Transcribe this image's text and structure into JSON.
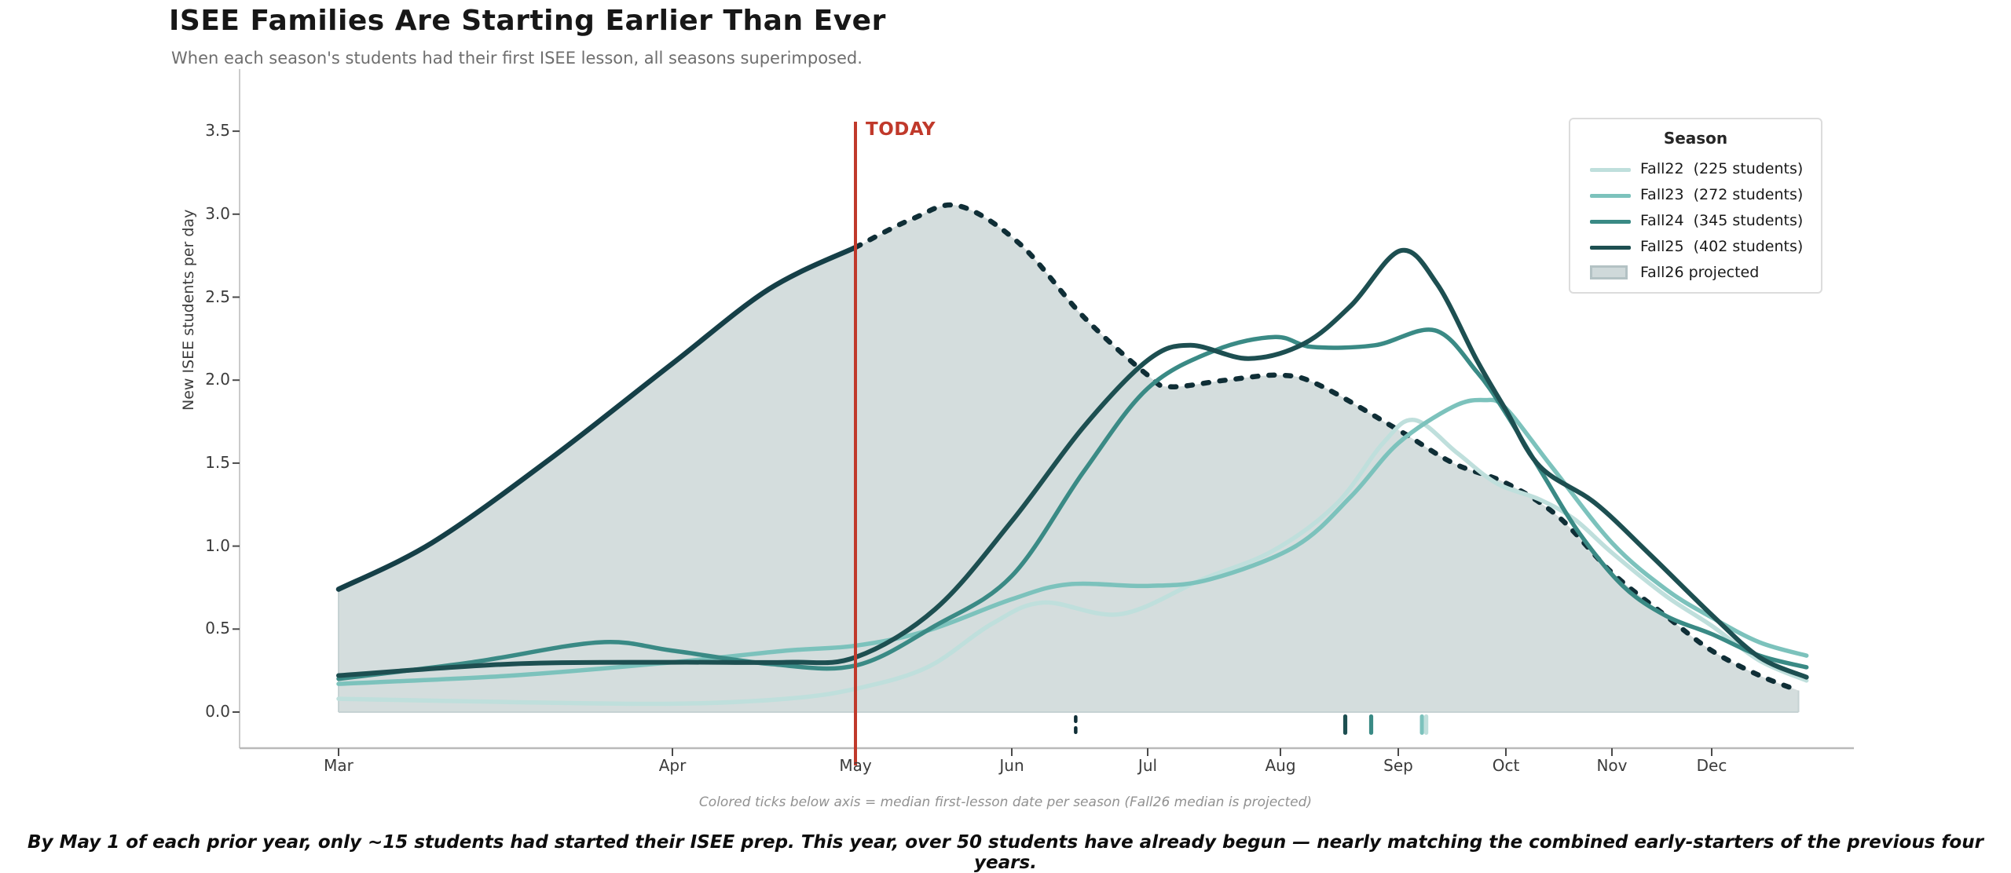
{
  "header": {
    "title": "ISEE Families Are Starting Earlier Than Ever",
    "subtitle": "When each season's students had their first ISEE lesson, all seasons superimposed."
  },
  "chart": {
    "today_label": "TODAY",
    "caption": "Colored ticks below axis = median first-lesson date per season  (Fall26 median is projected)",
    "y_axis": {
      "label": "New ISEE students per day",
      "ticks": [
        "0.0",
        "0.5",
        "1.0",
        "1.5",
        "2.0",
        "2.5",
        "3.0",
        "3.5"
      ]
    },
    "x_axis": {
      "months": [
        "Mar",
        "Apr",
        "May",
        "Jun",
        "Jul",
        "Aug",
        "Sep",
        "Oct",
        "Nov",
        "Dec"
      ]
    },
    "legend": {
      "title": "Season",
      "entries": [
        {
          "label": "Fall22  (225 students)",
          "type": "line",
          "color": "#bfdfdc"
        },
        {
          "label": "Fall23  (272 students)",
          "type": "line",
          "color": "#7cc2bc"
        },
        {
          "label": "Fall24  (345 students)",
          "type": "line",
          "color": "#3a8a85"
        },
        {
          "label": "Fall25  (402 students)",
          "type": "line",
          "color": "#1d4f51"
        },
        {
          "label": "Fall26 projected",
          "type": "patch",
          "color": "#cfd9da",
          "border": "#b3c2c4"
        }
      ]
    }
  },
  "footer": {
    "note": "By May 1 of each prior year, only ~15 students had started their ISEE prep. This year, over 50 students have already begun — nearly matching the combined early-starters of the previous four years."
  },
  "chart_data": {
    "type": "line",
    "x_unit": "month index (0 = Mar 1 ... 9 = Dec 1)",
    "xlabel": "",
    "ylabel": "New ISEE students per day",
    "ylim": [
      0,
      3.6
    ],
    "today_index": 2.0,
    "today_color": "#c0392b",
    "grid": false,
    "legend_position": "upper right",
    "series": [
      {
        "name": "Fall22",
        "students": 225,
        "color": "#bfdfdc",
        "width": 5.5,
        "points": [
          [
            0,
            0.08
          ],
          [
            0.52,
            0.06
          ],
          [
            1,
            0.05
          ],
          [
            1.62,
            0.08
          ],
          [
            2,
            0.14
          ],
          [
            2.46,
            0.27
          ],
          [
            2.87,
            0.53
          ],
          [
            3.23,
            0.66
          ],
          [
            3.8,
            0.59
          ],
          [
            4.41,
            0.8
          ],
          [
            4.94,
            0.97
          ],
          [
            5.47,
            1.25
          ],
          [
            5.87,
            1.62
          ],
          [
            6.15,
            1.76
          ],
          [
            6.55,
            1.56
          ],
          [
            6.91,
            1.38
          ],
          [
            7.32,
            1.28
          ],
          [
            7.65,
            1.16
          ],
          [
            8,
            0.96
          ],
          [
            8.54,
            0.7
          ],
          [
            9,
            0.52
          ],
          [
            9.48,
            0.31
          ],
          [
            9.95,
            0.19
          ]
        ]
      },
      {
        "name": "Fall23",
        "students": 272,
        "color": "#7cc2bc",
        "width": 5.5,
        "points": [
          [
            0,
            0.17
          ],
          [
            0.52,
            0.22
          ],
          [
            1,
            0.3
          ],
          [
            1.62,
            0.37
          ],
          [
            2,
            0.4
          ],
          [
            2.46,
            0.49
          ],
          [
            3,
            0.68
          ],
          [
            3.42,
            0.77
          ],
          [
            4,
            0.76
          ],
          [
            4.47,
            0.8
          ],
          [
            5.13,
            1.0
          ],
          [
            5.6,
            1.3
          ],
          [
            6,
            1.62
          ],
          [
            6.51,
            1.84
          ],
          [
            6.8,
            1.88
          ],
          [
            7,
            1.83
          ],
          [
            7.43,
            1.48
          ],
          [
            8,
            1.02
          ],
          [
            8.54,
            0.74
          ],
          [
            9,
            0.57
          ],
          [
            9.48,
            0.42
          ],
          [
            9.95,
            0.34
          ]
        ]
      },
      {
        "name": "Fall24",
        "students": 345,
        "color": "#3a8a85",
        "width": 5.5,
        "points": [
          [
            0,
            0.2
          ],
          [
            0.4,
            0.3
          ],
          [
            0.78,
            0.42
          ],
          [
            1,
            0.37
          ],
          [
            1.53,
            0.29
          ],
          [
            2,
            0.28
          ],
          [
            2.51,
            0.52
          ],
          [
            3,
            0.82
          ],
          [
            3.53,
            1.45
          ],
          [
            4,
            1.95
          ],
          [
            4.51,
            2.18
          ],
          [
            4.96,
            2.26
          ],
          [
            5.27,
            2.2
          ],
          [
            5.8,
            2.21
          ],
          [
            6.34,
            2.3
          ],
          [
            6.73,
            2.05
          ],
          [
            7,
            1.8
          ],
          [
            7.36,
            1.42
          ],
          [
            7.69,
            1.08
          ],
          [
            8.11,
            0.76
          ],
          [
            8.54,
            0.58
          ],
          [
            9,
            0.47
          ],
          [
            9.48,
            0.34
          ],
          [
            9.95,
            0.27
          ]
        ]
      },
      {
        "name": "Fall25",
        "students": 402,
        "color": "#1d4f51",
        "width": 6,
        "points": [
          [
            0,
            0.22
          ],
          [
            0.52,
            0.29
          ],
          [
            1,
            0.3
          ],
          [
            1.62,
            0.3
          ],
          [
            2,
            0.33
          ],
          [
            2.51,
            0.62
          ],
          [
            3,
            1.15
          ],
          [
            3.53,
            1.72
          ],
          [
            4,
            2.12
          ],
          [
            4.32,
            2.21
          ],
          [
            4.76,
            2.13
          ],
          [
            5.2,
            2.22
          ],
          [
            5.6,
            2.45
          ],
          [
            6.02,
            2.78
          ],
          [
            6.36,
            2.58
          ],
          [
            6.73,
            2.12
          ],
          [
            7,
            1.82
          ],
          [
            7.32,
            1.48
          ],
          [
            7.84,
            1.26
          ],
          [
            8.38,
            0.95
          ],
          [
            9.01,
            0.58
          ],
          [
            9.48,
            0.33
          ],
          [
            9.95,
            0.21
          ]
        ]
      }
    ],
    "projected": {
      "name": "Fall26 projected",
      "fill_color": "#d4dddd",
      "edge_color_observed": "#153f47",
      "edge_color_projected": "#0f2e36",
      "observed_until_index": 2.0,
      "points": [
        [
          0,
          0.74
        ],
        [
          0.28,
          1.02
        ],
        [
          0.63,
          1.52
        ],
        [
          1,
          2.1
        ],
        [
          1.53,
          2.55
        ],
        [
          2,
          2.8
        ],
        [
          2.36,
          2.97
        ],
        [
          2.66,
          3.05
        ],
        [
          3.06,
          2.82
        ],
        [
          3.53,
          2.38
        ],
        [
          4,
          2.03
        ],
        [
          4.17,
          1.96
        ],
        [
          4.59,
          2.0
        ],
        [
          5,
          2.03
        ],
        [
          5.33,
          1.97
        ],
        [
          6,
          1.7
        ],
        [
          6.51,
          1.5
        ],
        [
          7,
          1.38
        ],
        [
          7.49,
          1.18
        ],
        [
          8,
          0.84
        ],
        [
          8.54,
          0.58
        ],
        [
          9,
          0.37
        ],
        [
          9.48,
          0.22
        ],
        [
          9.87,
          0.13
        ]
      ]
    },
    "median_ticks": [
      {
        "season": "Fall26 (projected)",
        "index": 3.47,
        "color": "#0f2e36",
        "style": "dashed"
      },
      {
        "season": "Fall25",
        "index": 5.55,
        "color": "#1d4f51",
        "style": "solid"
      },
      {
        "season": "Fall24",
        "index": 5.77,
        "color": "#3a8a85",
        "style": "solid"
      },
      {
        "season": "Fall22",
        "index": 6.26,
        "color": "#bfdfdc",
        "style": "solid"
      },
      {
        "season": "Fall23",
        "index": 6.22,
        "color": "#7cc2bc",
        "style": "solid"
      }
    ]
  }
}
